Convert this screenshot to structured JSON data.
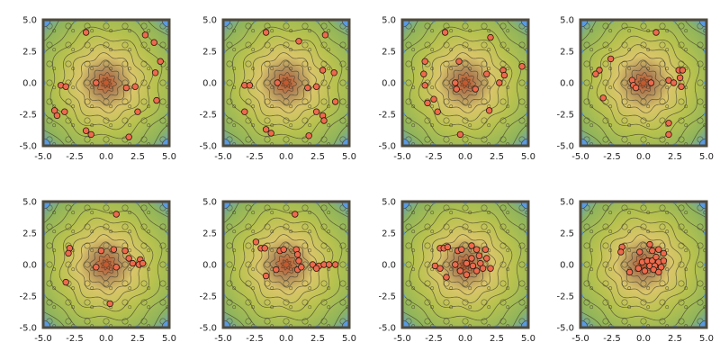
{
  "figure": {
    "panel_count": 8,
    "layout": "2 rows x 4 columns"
  },
  "colors": {
    "frame": "#4e4a3c",
    "contour_line": "#3d3a2c",
    "corner_blue": "#5a9ae0",
    "particle_fill": "#ee6a4c",
    "particle_edge": "#2a1a12",
    "background_cmap": [
      "#c8542a",
      "#b08a5a",
      "#d9c56a",
      "#b7c24e",
      "#8fb45c",
      "#5a9ae0"
    ]
  },
  "chart_data": [
    {
      "type": "scatter",
      "xlim": [
        -5,
        5
      ],
      "ylim": [
        -5,
        5
      ],
      "xticks": [
        "-5.0",
        "-2.5",
        "0.0",
        "2.5",
        "5.0"
      ],
      "yticks": [
        "-5.0",
        "-2.5",
        "0.0",
        "2.5",
        "5.0"
      ],
      "points": [
        [
          -1.6,
          4.0
        ],
        [
          3.1,
          3.8
        ],
        [
          3.8,
          3.2
        ],
        [
          4.3,
          1.7
        ],
        [
          3.9,
          0.8
        ],
        [
          -3.6,
          -0.2
        ],
        [
          -3.2,
          -0.3
        ],
        [
          -0.8,
          0.0
        ],
        [
          1.6,
          -0.4
        ],
        [
          2.3,
          -0.3
        ],
        [
          4.0,
          -1.4
        ],
        [
          -4.1,
          -2.2
        ],
        [
          -3.9,
          -2.6
        ],
        [
          -3.3,
          -2.3
        ],
        [
          2.5,
          -2.3
        ],
        [
          -1.6,
          -3.8
        ],
        [
          -1.2,
          -4.1
        ],
        [
          1.8,
          -4.3
        ]
      ]
    },
    {
      "type": "scatter",
      "xlim": [
        -5,
        5
      ],
      "ylim": [
        -5,
        5
      ],
      "xticks": [
        "-5.0",
        "-2.5",
        "0.0",
        "2.5",
        "5.0"
      ],
      "yticks": [
        "-5.0",
        "-2.5",
        "0.0",
        "2.5",
        "5.0"
      ],
      "points": [
        [
          -1.6,
          4.0
        ],
        [
          1.0,
          3.3
        ],
        [
          3.1,
          3.8
        ],
        [
          2.9,
          1.0
        ],
        [
          3.8,
          0.8
        ],
        [
          -3.3,
          -0.2
        ],
        [
          -2.9,
          -0.2
        ],
        [
          -0.7,
          0.0
        ],
        [
          1.7,
          -0.4
        ],
        [
          2.4,
          -0.3
        ],
        [
          3.9,
          -1.5
        ],
        [
          -3.3,
          -2.3
        ],
        [
          2.4,
          -2.3
        ],
        [
          2.9,
          -2.6
        ],
        [
          3.0,
          -3.0
        ],
        [
          -1.6,
          -3.7
        ],
        [
          -1.2,
          -4.0
        ],
        [
          1.8,
          -4.2
        ]
      ]
    },
    {
      "type": "scatter",
      "xlim": [
        -5,
        5
      ],
      "ylim": [
        -5,
        5
      ],
      "xticks": [
        "-5.0",
        "-2.5",
        "0.0",
        "2.5",
        "5.0"
      ],
      "yticks": [
        "-5.0",
        "-2.5",
        "0.0",
        "2.5",
        "5.0"
      ],
      "points": [
        [
          -1.6,
          4.0
        ],
        [
          2.0,
          3.6
        ],
        [
          -3.2,
          1.7
        ],
        [
          -3.3,
          0.7
        ],
        [
          -0.5,
          1.7
        ],
        [
          3.0,
          1.0
        ],
        [
          3.1,
          0.6
        ],
        [
          4.5,
          1.3
        ],
        [
          2.7,
          0.0
        ],
        [
          -3.2,
          -0.2
        ],
        [
          -0.8,
          0.0
        ],
        [
          -0.7,
          -0.5
        ],
        [
          0.8,
          -0.5
        ],
        [
          1.7,
          0.7
        ],
        [
          -2.5,
          -1.3
        ],
        [
          -3.0,
          -1.6
        ],
        [
          -2.2,
          -2.3
        ],
        [
          1.9,
          -2.2
        ],
        [
          -0.4,
          -4.1
        ]
      ]
    },
    {
      "type": "scatter",
      "xlim": [
        -5,
        5
      ],
      "ylim": [
        -5,
        5
      ],
      "xticks": [
        "-5.0",
        "-2.5",
        "0.0",
        "2.5",
        "5.0"
      ],
      "yticks": [
        "-5.0",
        "-2.5",
        "0.0",
        "2.5",
        "5.0"
      ],
      "points": [
        [
          1.0,
          4.0
        ],
        [
          -2.6,
          1.9
        ],
        [
          -3.5,
          1.0
        ],
        [
          -3.8,
          0.7
        ],
        [
          -0.9,
          0.2
        ],
        [
          -0.8,
          -0.2
        ],
        [
          0.6,
          0.0
        ],
        [
          2.8,
          1.0
        ],
        [
          3.1,
          1.0
        ],
        [
          2.9,
          0.4
        ],
        [
          3.0,
          -0.3
        ],
        [
          2.0,
          0.2
        ],
        [
          2.4,
          0.0
        ],
        [
          -3.2,
          -1.2
        ],
        [
          -0.6,
          -0.4
        ],
        [
          2.0,
          -3.2
        ],
        [
          2.0,
          -4.1
        ]
      ]
    },
    {
      "type": "scatter",
      "xlim": [
        -5,
        5
      ],
      "ylim": [
        -5,
        5
      ],
      "xticks": [
        "-5.0",
        "-2.5",
        "0.0",
        "2.5",
        "5.0"
      ],
      "yticks": [
        "-5.0",
        "-2.5",
        "0.0",
        "2.5",
        "5.0"
      ],
      "points": [
        [
          0.8,
          4.0
        ],
        [
          -2.9,
          1.3
        ],
        [
          -3.0,
          0.9
        ],
        [
          -0.4,
          1.1
        ],
        [
          0.6,
          1.2
        ],
        [
          1.5,
          1.1
        ],
        [
          1.8,
          0.5
        ],
        [
          2.7,
          0.4
        ],
        [
          2.6,
          0.0
        ],
        [
          2.9,
          0.1
        ],
        [
          -0.8,
          -0.2
        ],
        [
          0.8,
          -0.2
        ],
        [
          2.1,
          0.1
        ],
        [
          -3.2,
          -1.4
        ],
        [
          0.3,
          -3.1
        ]
      ]
    },
    {
      "type": "scatter",
      "xlim": [
        -5,
        5
      ],
      "ylim": [
        -5,
        5
      ],
      "xticks": [
        "-5.0",
        "-2.5",
        "0.0",
        "2.5",
        "5.0"
      ],
      "yticks": [
        "-5.0",
        "-2.5",
        "0.0",
        "2.5",
        "5.0"
      ],
      "points": [
        [
          0.7,
          4.0
        ],
        [
          -2.4,
          1.8
        ],
        [
          -2.0,
          1.3
        ],
        [
          -1.7,
          1.3
        ],
        [
          -0.5,
          1.1
        ],
        [
          -0.2,
          1.2
        ],
        [
          0.8,
          1.2
        ],
        [
          0.9,
          0.8
        ],
        [
          1.0,
          0.3
        ],
        [
          2.1,
          0.0
        ],
        [
          2.6,
          -0.1
        ],
        [
          3.0,
          0.0
        ],
        [
          3.4,
          0.0
        ],
        [
          3.9,
          0.0
        ],
        [
          -0.8,
          -0.4
        ],
        [
          0.9,
          -0.4
        ],
        [
          1.2,
          -0.2
        ],
        [
          2.4,
          -0.3
        ],
        [
          -1.6,
          -0.9
        ]
      ]
    },
    {
      "type": "scatter",
      "xlim": [
        -5,
        5
      ],
      "ylim": [
        -5,
        5
      ],
      "xticks": [
        "-5.0",
        "-2.5",
        "0.0",
        "2.5",
        "5.0"
      ],
      "yticks": [
        "-5.0",
        "-2.5",
        "0.0",
        "2.5",
        "5.0"
      ],
      "points": [
        [
          -2.0,
          1.3
        ],
        [
          -1.7,
          1.3
        ],
        [
          -1.4,
          1.4
        ],
        [
          -0.6,
          1.1
        ],
        [
          -0.3,
          1.2
        ],
        [
          0.5,
          1.5
        ],
        [
          0.9,
          1.2
        ],
        [
          1.6,
          1.2
        ],
        [
          0.5,
          0.5
        ],
        [
          1.1,
          0.7
        ],
        [
          -2.4,
          -0.1
        ],
        [
          -2.0,
          -0.3
        ],
        [
          -0.8,
          0.0
        ],
        [
          0.1,
          0.1
        ],
        [
          0.6,
          -0.1
        ],
        [
          1.2,
          0.1
        ],
        [
          1.7,
          0.5
        ],
        [
          -0.4,
          -0.5
        ],
        [
          0.9,
          -0.5
        ],
        [
          1.4,
          -0.3
        ],
        [
          2.0,
          -0.3
        ],
        [
          -1.5,
          -1.0
        ],
        [
          0.1,
          -0.8
        ]
      ]
    },
    {
      "type": "scatter",
      "xlim": [
        -5,
        5
      ],
      "ylim": [
        -5,
        5
      ],
      "xticks": [
        "-5.0",
        "-2.5",
        "0.0",
        "2.5",
        "5.0"
      ],
      "yticks": [
        "-5.0",
        "-2.5",
        "0.0",
        "2.5",
        "5.0"
      ],
      "points": [
        [
          -1.7,
          1.4
        ],
        [
          -1.8,
          1.0
        ],
        [
          -0.3,
          1.0
        ],
        [
          0.5,
          1.6
        ],
        [
          0.7,
          1.1
        ],
        [
          1.2,
          1.2
        ],
        [
          1.6,
          0.9
        ],
        [
          -0.1,
          0.2
        ],
        [
          0.3,
          0.3
        ],
        [
          0.7,
          0.3
        ],
        [
          1.0,
          0.6
        ],
        [
          1.2,
          0.2
        ],
        [
          1.6,
          0.3
        ],
        [
          0.5,
          -0.1
        ],
        [
          0.9,
          -0.1
        ],
        [
          1.4,
          -0.2
        ],
        [
          -0.4,
          -0.3
        ],
        [
          0.1,
          -0.5
        ],
        [
          0.8,
          -0.4
        ],
        [
          -1.1,
          -0.6
        ],
        [
          1.2,
          -0.6
        ]
      ]
    }
  ]
}
